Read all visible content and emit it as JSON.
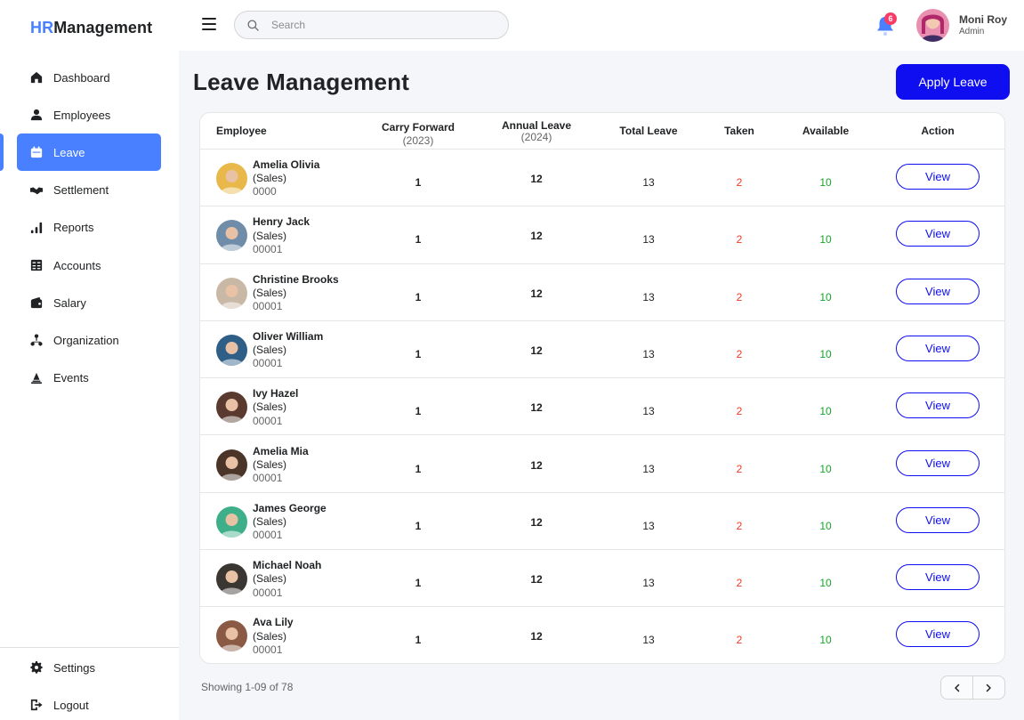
{
  "app": {
    "logo_prefix": "HR",
    "logo_suffix": "Management"
  },
  "sidebar": {
    "items": [
      {
        "label": "Dashboard",
        "icon": "home-icon"
      },
      {
        "label": "Employees",
        "icon": "user-icon"
      },
      {
        "label": "Leave",
        "icon": "calendar-icon",
        "active": true
      },
      {
        "label": "Settlement",
        "icon": "handshake-icon"
      },
      {
        "label": "Reports",
        "icon": "bar-chart-icon"
      },
      {
        "label": "Accounts",
        "icon": "ledger-icon"
      },
      {
        "label": "Salary",
        "icon": "wallet-icon"
      },
      {
        "label": "Organization",
        "icon": "org-chart-icon"
      },
      {
        "label": "Events",
        "icon": "event-icon"
      }
    ],
    "bottom_items": [
      {
        "label": "Settings",
        "icon": "gear-icon"
      },
      {
        "label": "Logout",
        "icon": "logout-icon"
      }
    ]
  },
  "topbar": {
    "search_placeholder": "Search",
    "notification_count": "6",
    "user_name": "Moni Roy",
    "user_role": "Admin"
  },
  "page": {
    "title": "Leave Management",
    "apply_button": "Apply Leave",
    "showing": "Showing 1-09 of 78"
  },
  "table": {
    "headers": {
      "employee": "Employee",
      "carry_forward": "Carry Forward",
      "carry_forward_year": "(2023)",
      "annual_leave": "Annual Leave",
      "annual_leave_year": "(2024)",
      "total_leave": "Total Leave",
      "taken": "Taken",
      "available": "Available",
      "action": "Action"
    },
    "rows": [
      {
        "name": "Amelia Olivia",
        "dept": "(Sales)",
        "id": "0000",
        "carry": "1",
        "annual": "12",
        "total": "13",
        "taken": "2",
        "available": "10",
        "action": "View",
        "avatar_color": "#E8B84A"
      },
      {
        "name": "Henry Jack",
        "dept": "(Sales)",
        "id": "00001",
        "carry": "1",
        "annual": "12",
        "total": "13",
        "taken": "2",
        "available": "10",
        "action": "View",
        "avatar_color": "#6F8CA8"
      },
      {
        "name": "Christine Brooks",
        "dept": "(Sales)",
        "id": "00001",
        "carry": "1",
        "annual": "12",
        "total": "13",
        "taken": "2",
        "available": "10",
        "action": "View",
        "avatar_color": "#C9B8A6"
      },
      {
        "name": "Oliver William",
        "dept": "(Sales)",
        "id": "00001",
        "carry": "1",
        "annual": "12",
        "total": "13",
        "taken": "2",
        "available": "10",
        "action": "View",
        "avatar_color": "#2F5E86"
      },
      {
        "name": "Ivy Hazel",
        "dept": "(Sales)",
        "id": "00001",
        "carry": "1",
        "annual": "12",
        "total": "13",
        "taken": "2",
        "available": "10",
        "action": "View",
        "avatar_color": "#5A3A2E"
      },
      {
        "name": "Amelia Mia",
        "dept": "(Sales)",
        "id": "00001",
        "carry": "1",
        "annual": "12",
        "total": "13",
        "taken": "2",
        "available": "10",
        "action": "View",
        "avatar_color": "#4B3428"
      },
      {
        "name": "James George",
        "dept": "(Sales)",
        "id": "00001",
        "carry": "1",
        "annual": "12",
        "total": "13",
        "taken": "2",
        "available": "10",
        "action": "View",
        "avatar_color": "#3FAF8A"
      },
      {
        "name": "Michael Noah",
        "dept": "(Sales)",
        "id": "00001",
        "carry": "1",
        "annual": "12",
        "total": "13",
        "taken": "2",
        "available": "10",
        "action": "View",
        "avatar_color": "#3A3632"
      },
      {
        "name": "Ava Lily",
        "dept": "(Sales)",
        "id": "00001",
        "carry": "1",
        "annual": "12",
        "total": "13",
        "taken": "2",
        "available": "10",
        "action": "View",
        "avatar_color": "#8A5A44"
      }
    ]
  },
  "colors": {
    "accent": "#4880FF",
    "primary_button": "#0E0EF0",
    "taken": "#EF3826",
    "available": "#17A52B",
    "badge": "#F93C65"
  }
}
